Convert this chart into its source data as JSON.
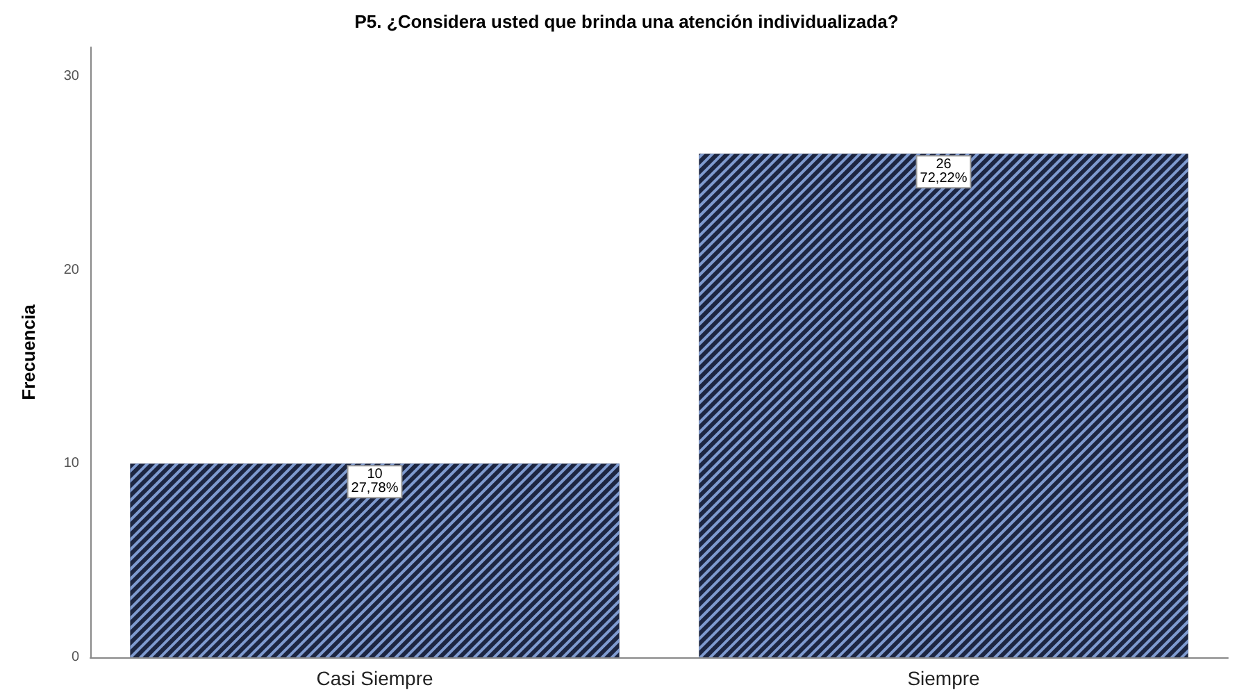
{
  "chart_data": {
    "type": "bar",
    "title": "P5. ¿Considera usted que brinda una atención individualizada?",
    "ylabel": "Frecuencia",
    "categories": [
      "Casi Siempre",
      "Siempre"
    ],
    "values": [
      10,
      26
    ],
    "color": "#1c2541",
    "value_labels": [
      "10\n27,78%",
      "26\n72,22%"
    ],
    "ylim": [
      0,
      31.5
    ],
    "yticks": [
      0,
      10,
      20,
      30
    ],
    "grid": false
  }
}
